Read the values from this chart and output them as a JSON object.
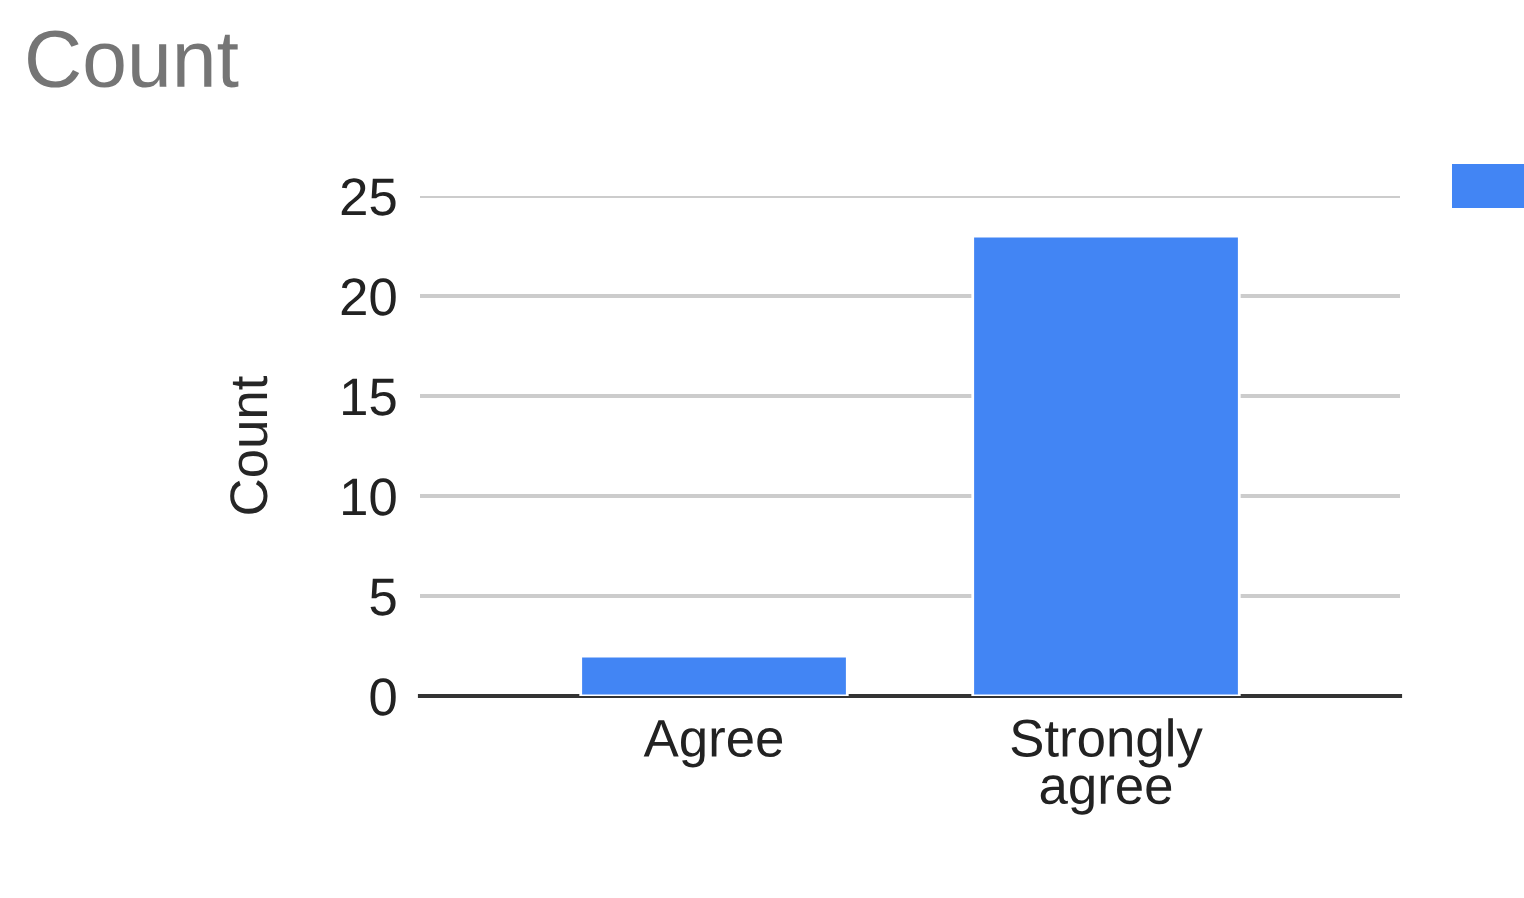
{
  "chart_data": {
    "type": "bar",
    "title": "Count",
    "ylabel": "Count",
    "categories": [
      "Agree",
      "Strongly\nagree"
    ],
    "series": [
      {
        "color": "#4285f4",
        "values": [
          2,
          23
        ]
      }
    ],
    "ylim": [
      0,
      25
    ],
    "yticks": [
      0,
      5,
      10,
      15,
      20,
      25
    ],
    "grid": "y"
  }
}
